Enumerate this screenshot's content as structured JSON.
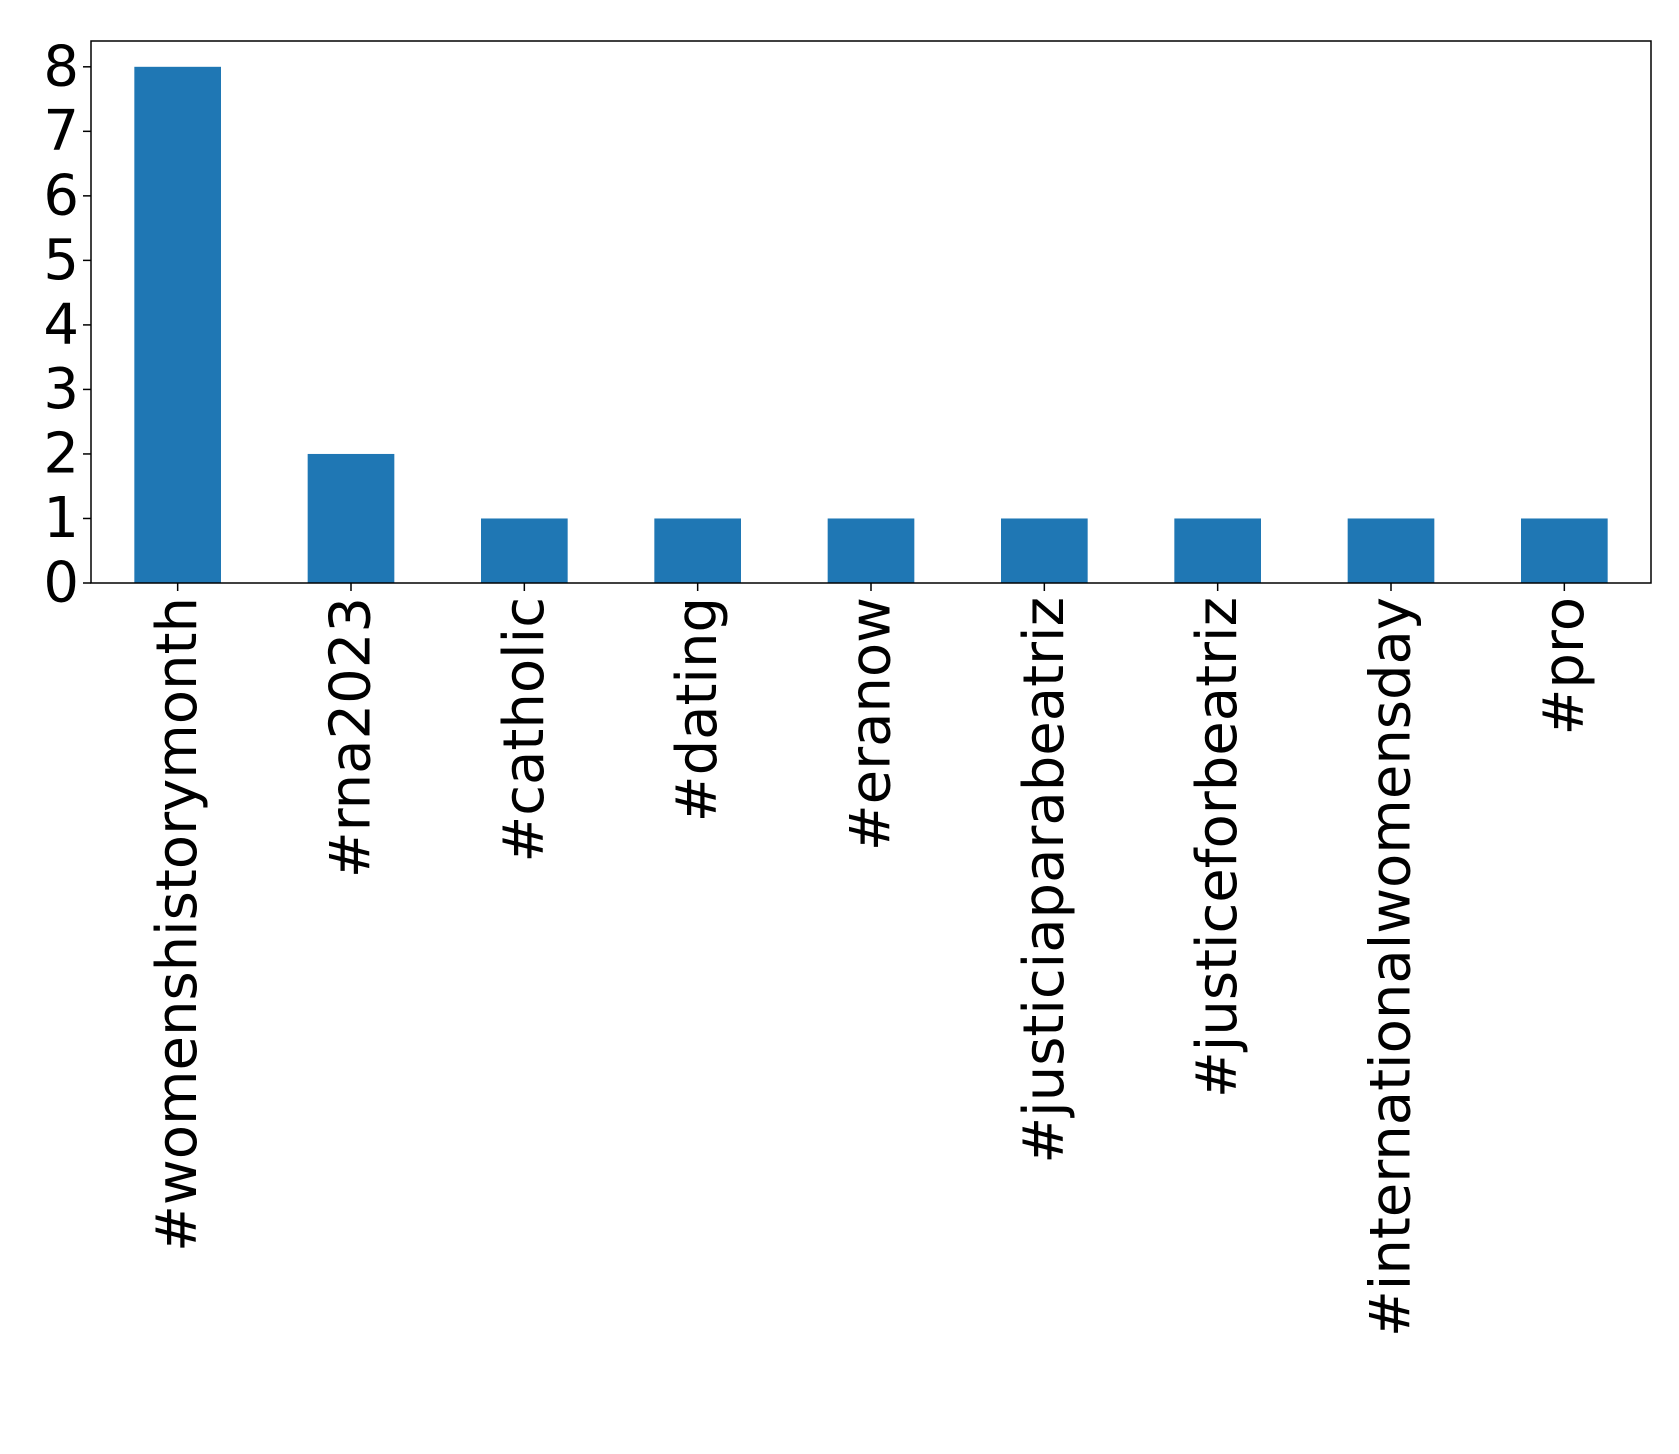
{
  "chart_data": {
    "type": "bar",
    "title": "",
    "xlabel": "",
    "ylabel": "",
    "categories": [
      "#womenshistorymonth",
      "#rna2023",
      "#catholic",
      "#dating",
      "#eranow",
      "#justiciaparabeatriz",
      "#justiceforbeatriz",
      "#internationalwomensday",
      "#pro"
    ],
    "values": [
      8,
      2,
      1,
      1,
      1,
      1,
      1,
      1,
      1
    ],
    "ylim": [
      0,
      8.4
    ],
    "yticks": [
      "0",
      "1",
      "2",
      "3",
      "4",
      "5",
      "6",
      "7",
      "8"
    ],
    "bar_color": "#1f77b4",
    "grid": false,
    "legend": "none"
  }
}
